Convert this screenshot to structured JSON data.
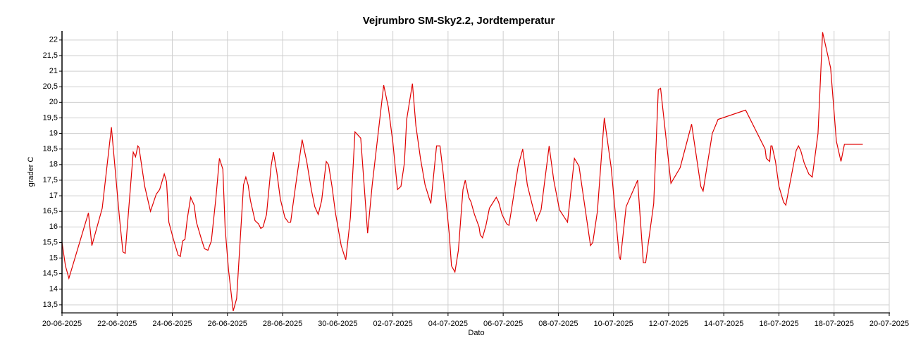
{
  "chart_data": {
    "type": "line",
    "title": "Vejrumbro SM-Sky2.2, Jordtemperatur",
    "x_label": "Dato",
    "y_label": "grader C",
    "xlim": [
      "2025-06-20",
      "2025-07-20"
    ],
    "ylim": [
      13.25,
      22.29
    ],
    "grid": true,
    "xticks": [
      {
        "value": "2025-06-20",
        "label": "20-06-2025"
      },
      {
        "value": "2025-06-22",
        "label": "22-06-2025"
      },
      {
        "value": "2025-06-24",
        "label": "24-06-2025"
      },
      {
        "value": "2025-06-26",
        "label": "26-06-2025"
      },
      {
        "value": "2025-06-28",
        "label": "28-06-2025"
      },
      {
        "value": "2025-06-30",
        "label": "30-06-2025"
      },
      {
        "value": "2025-07-02",
        "label": "02-07-2025"
      },
      {
        "value": "2025-07-04",
        "label": "04-07-2025"
      },
      {
        "value": "2025-07-06",
        "label": "06-07-2025"
      },
      {
        "value": "2025-07-08",
        "label": "08-07-2025"
      },
      {
        "value": "2025-07-10",
        "label": "10-07-2025"
      },
      {
        "value": "2025-07-12",
        "label": "12-07-2025"
      },
      {
        "value": "2025-07-14",
        "label": "14-07-2025"
      },
      {
        "value": "2025-07-16",
        "label": "16-07-2025"
      },
      {
        "value": "2025-07-18",
        "label": "18-07-2025"
      },
      {
        "value": "2025-07-20",
        "label": "20-07-2025"
      }
    ],
    "yticks": [
      {
        "value": 13.5,
        "label": "13,5"
      },
      14,
      {
        "value": 14.5,
        "label": "14,5"
      },
      15,
      {
        "value": 15.5,
        "label": "15,5"
      },
      16,
      {
        "value": 16.5,
        "label": "16,5"
      },
      17,
      {
        "value": 17.5,
        "label": "17,5"
      },
      18,
      {
        "value": 18.5,
        "label": "18,5"
      },
      19,
      {
        "value": 19.5,
        "label": "19,5"
      },
      20,
      {
        "value": 20.5,
        "label": "20,5"
      },
      21,
      {
        "value": 21.5,
        "label": "21,5"
      },
      22
    ],
    "x": [
      "2025-06-20T00:00",
      "2025-06-20T03:00",
      "2025-06-20T06:00",
      "2025-06-20T23:00",
      "2025-06-21T02:00",
      "2025-06-21T11:00",
      "2025-06-21T19:00",
      "2025-06-22T02:00",
      "2025-06-22T05:00",
      "2025-06-22T07:00",
      "2025-06-22T14:00",
      "2025-06-22T16:00",
      "2025-06-22T18:00",
      "2025-06-22T19:00",
      "2025-06-23T00:00",
      "2025-06-23T05:00",
      "2025-06-23T10:00",
      "2025-06-23T13:00",
      "2025-06-23T17:00",
      "2025-06-23T19:00",
      "2025-06-23T21:00",
      "2025-06-24T01:00",
      "2025-06-24T05:00",
      "2025-06-24T07:00",
      "2025-06-24T09:00",
      "2025-06-24T11:00",
      "2025-06-24T13:00",
      "2025-06-24T16:00",
      "2025-06-24T19:00",
      "2025-06-24T21:00",
      "2025-06-25T01:00",
      "2025-06-25T04:00",
      "2025-06-25T07:00",
      "2025-06-25T10:00",
      "2025-06-25T14:00",
      "2025-06-25T17:00",
      "2025-06-25T20:00",
      "2025-06-25T22:00",
      "2025-06-26T01:00",
      "2025-06-26T05:00",
      "2025-06-26T08:00",
      "2025-06-26T14:00",
      "2025-06-26T16:00",
      "2025-06-26T18:00",
      "2025-06-26T20:00",
      "2025-06-27T00:00",
      "2025-06-27T03:00",
      "2025-06-27T05:00",
      "2025-06-27T07:00",
      "2025-06-27T10:00",
      "2025-06-27T14:00",
      "2025-06-27T16:00",
      "2025-06-27T19:00",
      "2025-06-27T22:00",
      "2025-06-28T02:00",
      "2025-06-28T05:00",
      "2025-06-28T07:00",
      "2025-06-28T09:00",
      "2025-06-28T12:00",
      "2025-06-28T17:00",
      "2025-06-28T21:00",
      "2025-06-29T01:00",
      "2025-06-29T04:00",
      "2025-06-29T07:00",
      "2025-06-29T10:00",
      "2025-06-29T14:00",
      "2025-06-29T16:00",
      "2025-06-29T19:00",
      "2025-06-29T22:00",
      "2025-06-30T03:00",
      "2025-06-30T06:00",
      "2025-06-30T07:00",
      "2025-06-30T11:00",
      "2025-06-30T15:00",
      "2025-06-30T20:00",
      "2025-07-01T02:00",
      "2025-07-01T06:00",
      "2025-07-01T16:00",
      "2025-07-01T20:00",
      "2025-07-02T00:00",
      "2025-07-02T04:00",
      "2025-07-02T07:00",
      "2025-07-02T10:00",
      "2025-07-02T12:00",
      "2025-07-02T17:00",
      "2025-07-02T20:00",
      "2025-07-03T00:00",
      "2025-07-03T04:00",
      "2025-07-03T09:00",
      "2025-07-03T14:00",
      "2025-07-03T17:00",
      "2025-07-03T20:00",
      "2025-07-04T01:00",
      "2025-07-04T03:00",
      "2025-07-04T06:00",
      "2025-07-04T09:00",
      "2025-07-04T13:00",
      "2025-07-04T15:00",
      "2025-07-04T18:00",
      "2025-07-04T20:00",
      "2025-07-04T23:00",
      "2025-07-05T03:00",
      "2025-07-05T04:00",
      "2025-07-05T06:00",
      "2025-07-05T09:00",
      "2025-07-05T12:00",
      "2025-07-05T18:00",
      "2025-07-05T20:00",
      "2025-07-05T23:00",
      "2025-07-06T03:00",
      "2025-07-06T05:00",
      "2025-07-06T07:00",
      "2025-07-06T13:00",
      "2025-07-06T17:00",
      "2025-07-06T21:00",
      "2025-07-07T01:00",
      "2025-07-07T05:00",
      "2025-07-07T09:00",
      "2025-07-07T16:00",
      "2025-07-07T20:00",
      "2025-07-08T01:00",
      "2025-07-08T08:00",
      "2025-07-08T14:00",
      "2025-07-08T18:00",
      "2025-07-09T04:00",
      "2025-07-09T06:00",
      "2025-07-09T10:00",
      "2025-07-09T16:00",
      "2025-07-09T22:00",
      "2025-07-10T05:00",
      "2025-07-10T06:00",
      "2025-07-10T11:00",
      "2025-07-10T21:00",
      "2025-07-11T02:00",
      "2025-07-11T04:00",
      "2025-07-11T11:00",
      "2025-07-11T15:00",
      "2025-07-11T17:00",
      "2025-07-11T21:00",
      "2025-07-12T02:00",
      "2025-07-12T10:00",
      "2025-07-12T20:00",
      "2025-07-13T04:00",
      "2025-07-13T06:00",
      "2025-07-13T14:00",
      "2025-07-13T19:00",
      "2025-07-14T19:00",
      "2025-07-15T12:00",
      "2025-07-15T13:00",
      "2025-07-15T16:00",
      "2025-07-15T17:00",
      "2025-07-15T18:00",
      "2025-07-15T21:00",
      "2025-07-16T00:00",
      "2025-07-16T04:00",
      "2025-07-16T06:00",
      "2025-07-16T15:00",
      "2025-07-16T17:00",
      "2025-07-16T19:00",
      "2025-07-16T22:00",
      "2025-07-17T02:00",
      "2025-07-17T05:00",
      "2025-07-17T10:00",
      "2025-07-17T14:00",
      "2025-07-17T21:00",
      "2025-07-18T02:00",
      "2025-07-18T06:00",
      "2025-07-18T09:00",
      "2025-07-19T01:00"
    ],
    "series": [
      {
        "color": "#e00000",
        "values": [
          15.5,
          14.75,
          14.35,
          16.45,
          15.4,
          16.6,
          19.2,
          16.3,
          15.2,
          15.15,
          18.4,
          18.25,
          18.6,
          18.55,
          17.3,
          16.5,
          17.05,
          17.2,
          17.7,
          17.45,
          16.15,
          15.6,
          15.1,
          15.05,
          15.55,
          15.6,
          16.25,
          16.95,
          16.7,
          16.15,
          15.65,
          15.3,
          15.25,
          15.55,
          16.95,
          18.2,
          17.85,
          15.95,
          14.6,
          13.3,
          13.7,
          17.35,
          17.6,
          17.35,
          16.85,
          16.2,
          16.1,
          15.95,
          16.0,
          16.4,
          17.95,
          18.4,
          17.75,
          16.9,
          16.3,
          16.15,
          16.15,
          16.7,
          17.5,
          18.8,
          18.1,
          17.2,
          16.65,
          16.4,
          16.85,
          18.1,
          18.0,
          17.3,
          16.45,
          15.4,
          15.05,
          14.95,
          16.3,
          19.05,
          18.85,
          15.8,
          17.35,
          20.55,
          19.85,
          18.7,
          17.2,
          17.3,
          18.05,
          19.45,
          20.6,
          19.25,
          18.2,
          17.35,
          16.75,
          18.6,
          18.6,
          17.65,
          15.8,
          14.75,
          14.55,
          15.25,
          17.2,
          17.5,
          16.95,
          16.8,
          16.4,
          16.0,
          15.75,
          15.65,
          16.05,
          16.6,
          16.95,
          16.8,
          16.4,
          16.1,
          16.05,
          16.5,
          17.95,
          18.5,
          17.35,
          16.75,
          16.2,
          16.55,
          18.6,
          17.5,
          16.55,
          16.15,
          18.2,
          17.95,
          15.4,
          15.5,
          16.5,
          19.5,
          17.9,
          15.05,
          14.95,
          16.65,
          17.5,
          14.85,
          14.85,
          16.75,
          20.4,
          20.45,
          19.1,
          17.4,
          17.9,
          19.3,
          17.3,
          17.15,
          19.0,
          19.45,
          19.75,
          18.5,
          18.2,
          18.1,
          18.6,
          18.6,
          18.1,
          17.3,
          16.8,
          16.7,
          18.45,
          18.6,
          18.45,
          18.05,
          17.7,
          17.6,
          19.0,
          22.25,
          21.1,
          18.75,
          18.1,
          18.65,
          18.65
        ]
      }
    ]
  }
}
